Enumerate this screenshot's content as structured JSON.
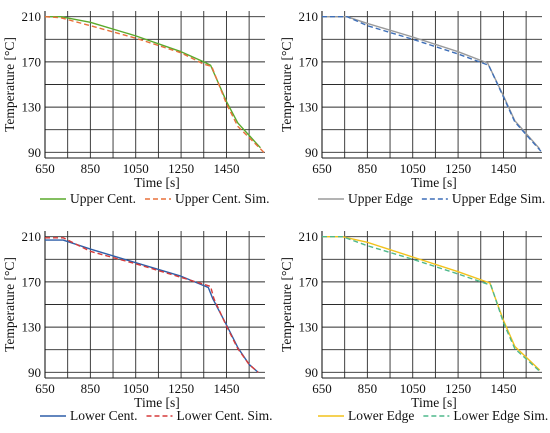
{
  "chart_data": [
    {
      "type": "line",
      "xlabel": "Time [s]",
      "ylabel": "Temperature [°C]",
      "xlim": [
        650,
        1620
      ],
      "ylim": [
        85,
        215
      ],
      "x_ticks": [
        650,
        850,
        1050,
        1250,
        1450
      ],
      "y_ticks": [
        90,
        130,
        170,
        210
      ],
      "grid": true,
      "legend_position": "bottom",
      "series": [
        {
          "name": "Upper Cent.",
          "color": "#5aaa2c",
          "dashed": false,
          "x": [
            650,
            720,
            850,
            1050,
            1250,
            1350,
            1380,
            1450,
            1500,
            1600
          ],
          "y": [
            210,
            210,
            205,
            193,
            179,
            170,
            167,
            135,
            116,
            94
          ]
        },
        {
          "name": "Upper Cent. Sim.",
          "color": "#e8703a",
          "dashed": true,
          "x": [
            650,
            720,
            850,
            1050,
            1250,
            1350,
            1385,
            1450,
            1500,
            1615
          ],
          "y": [
            210,
            209,
            202,
            191,
            178,
            168,
            166,
            133,
            113,
            90
          ]
        }
      ]
    },
    {
      "type": "line",
      "xlabel": "Time [s]",
      "ylabel": "Temperature [°C]",
      "xlim": [
        650,
        1620
      ],
      "ylim": [
        85,
        215
      ],
      "x_ticks": [
        650,
        850,
        1050,
        1250,
        1450
      ],
      "y_ticks": [
        90,
        130,
        170,
        210
      ],
      "grid": true,
      "legend_position": "bottom",
      "series": [
        {
          "name": "Upper Edge",
          "color": "#9a9a9a",
          "dashed": false,
          "x": [
            650,
            760,
            850,
            1050,
            1250,
            1380,
            1450,
            1500,
            1610
          ],
          "y": [
            210,
            210,
            204,
            192,
            179,
            169,
            140,
            118,
            93
          ]
        },
        {
          "name": "Upper Edge Sim.",
          "color": "#3e6fb8",
          "dashed": true,
          "x": [
            650,
            760,
            850,
            1050,
            1250,
            1385,
            1450,
            1500,
            1615
          ],
          "y": [
            210,
            210,
            202,
            190,
            177,
            167,
            139,
            117,
            91
          ]
        }
      ]
    },
    {
      "type": "line",
      "xlabel": "Time [s]",
      "ylabel": "Temperature [°C]",
      "xlim": [
        650,
        1620
      ],
      "ylim": [
        85,
        215
      ],
      "x_ticks": [
        650,
        850,
        1050,
        1250,
        1450
      ],
      "y_ticks": [
        90,
        130,
        170,
        210
      ],
      "grid": true,
      "legend_position": "bottom",
      "series": [
        {
          "name": "Lower Cent.",
          "color": "#2f5fa8",
          "dashed": false,
          "x": [
            650,
            730,
            850,
            1050,
            1250,
            1370,
            1390,
            1450,
            1500,
            1550,
            1590
          ],
          "y": [
            207,
            207,
            199,
            187,
            175,
            165,
            155,
            132,
            112,
            97,
            90
          ]
        },
        {
          "name": "Lower Cent. Sim.",
          "color": "#d63a3a",
          "dashed": true,
          "x": [
            650,
            730,
            850,
            1050,
            1250,
            1380,
            1395,
            1450,
            1500,
            1550,
            1590
          ],
          "y": [
            209,
            209,
            197,
            186,
            174,
            166,
            155,
            131,
            111,
            97,
            90
          ]
        }
      ]
    },
    {
      "type": "line",
      "xlabel": "Time [s]",
      "ylabel": "Temperature [°C]",
      "xlim": [
        650,
        1620
      ],
      "ylim": [
        85,
        215
      ],
      "x_ticks": [
        650,
        850,
        1050,
        1250,
        1450
      ],
      "y_ticks": [
        90,
        130,
        170,
        210
      ],
      "grid": true,
      "legend_position": "bottom",
      "series": [
        {
          "name": "Lower Edge",
          "color": "#f2c21c",
          "dashed": false,
          "x": [
            650,
            740,
            850,
            1050,
            1250,
            1390,
            1450,
            1500,
            1610
          ],
          "y": [
            210,
            210,
            205,
            192,
            179,
            169,
            136,
            113,
            92
          ]
        },
        {
          "name": "Lower Edge Sim.",
          "color": "#4fb88c",
          "dashed": true,
          "x": [
            650,
            740,
            850,
            1050,
            1250,
            1395,
            1450,
            1500,
            1615
          ],
          "y": [
            210,
            210,
            202,
            190,
            177,
            167,
            134,
            111,
            90
          ]
        }
      ]
    }
  ]
}
